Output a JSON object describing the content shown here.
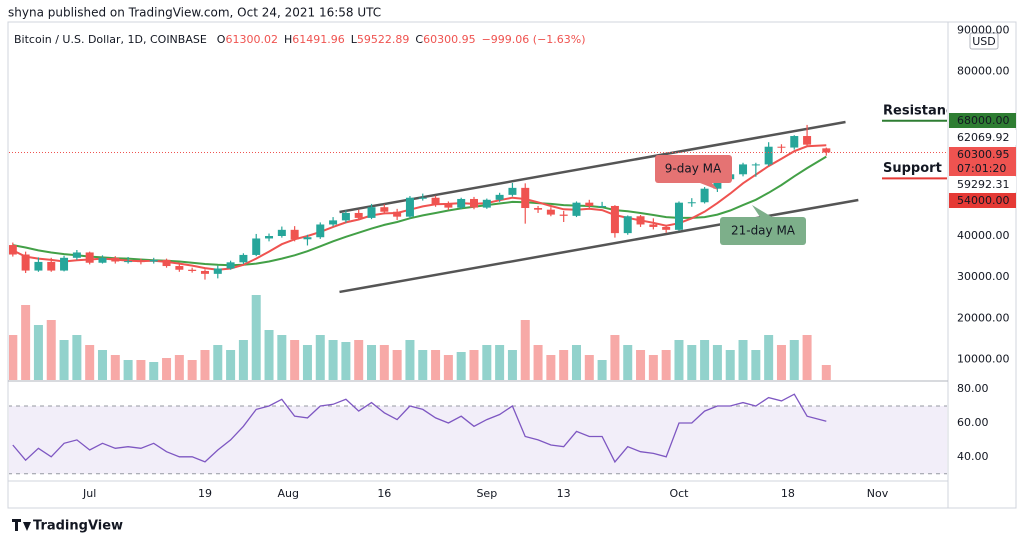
{
  "header": "shyna published on TradingView.com, Oct 24, 2021 16:58 UTC",
  "footer": "TradingView",
  "chart_data": {
    "type": "candlestick",
    "symbol": "Bitcoin / U.S. Dollar, 1D, COINBASE",
    "ohlc_keys": [
      "O",
      "H",
      "L",
      "C"
    ],
    "change_label": "−999.06 (−1.63%)",
    "currency": "USD",
    "up_color": "#26a69a",
    "down_color": "#ef5350",
    "x": [
      "2021-06-19",
      "2021-06-21",
      "2021-06-23",
      "2021-06-25",
      "2021-06-27",
      "2021-06-29",
      "2021-07-01",
      "2021-07-03",
      "2021-07-05",
      "2021-07-07",
      "2021-07-09",
      "2021-07-11",
      "2021-07-13",
      "2021-07-15",
      "2021-07-17",
      "2021-07-19",
      "2021-07-21",
      "2021-07-23",
      "2021-07-25",
      "2021-07-27",
      "2021-07-29",
      "2021-07-31",
      "2021-08-02",
      "2021-08-04",
      "2021-08-06",
      "2021-08-08",
      "2021-08-10",
      "2021-08-12",
      "2021-08-14",
      "2021-08-16",
      "2021-08-18",
      "2021-08-20",
      "2021-08-22",
      "2021-08-24",
      "2021-08-26",
      "2021-08-28",
      "2021-08-30",
      "2021-09-01",
      "2021-09-03",
      "2021-09-05",
      "2021-09-07",
      "2021-09-09",
      "2021-09-11",
      "2021-09-13",
      "2021-09-15",
      "2021-09-17",
      "2021-09-19",
      "2021-09-21",
      "2021-09-23",
      "2021-09-25",
      "2021-09-27",
      "2021-09-29",
      "2021-10-01",
      "2021-10-03",
      "2021-10-05",
      "2021-10-07",
      "2021-10-09",
      "2021-10-11",
      "2021-10-13",
      "2021-10-15",
      "2021-10-17",
      "2021-10-19",
      "2021-10-21",
      "2021-10-24"
    ],
    "ohlc": [
      [
        37800,
        38400,
        35000,
        35500
      ],
      [
        35500,
        36200,
        31000,
        31600
      ],
      [
        31600,
        34800,
        31300,
        33700
      ],
      [
        33700,
        34700,
        31300,
        31600
      ],
      [
        31600,
        35200,
        31400,
        34700
      ],
      [
        34700,
        36600,
        34200,
        36000
      ],
      [
        36000,
        36200,
        33100,
        33500
      ],
      [
        33500,
        35300,
        33300,
        34700
      ],
      [
        34700,
        35100,
        33300,
        33800
      ],
      [
        33800,
        34900,
        33300,
        33900
      ],
      [
        33900,
        34500,
        33100,
        33800
      ],
      [
        33800,
        34700,
        33300,
        34200
      ],
      [
        34200,
        34500,
        32300,
        32700
      ],
      [
        32700,
        33200,
        31300,
        31800
      ],
      [
        31800,
        32300,
        31100,
        31500
      ],
      [
        31500,
        31900,
        29400,
        30800
      ],
      [
        30800,
        32800,
        29700,
        32100
      ],
      [
        32100,
        34000,
        31800,
        33600
      ],
      [
        33600,
        35800,
        33200,
        35400
      ],
      [
        35400,
        40500,
        35100,
        39400
      ],
      [
        39400,
        40600,
        38700,
        40000
      ],
      [
        40000,
        42300,
        39600,
        41500
      ],
      [
        41500,
        42400,
        38700,
        39200
      ],
      [
        39200,
        40300,
        37700,
        39700
      ],
      [
        39700,
        43300,
        39300,
        42800
      ],
      [
        42800,
        44600,
        42300,
        43800
      ],
      [
        43800,
        46200,
        43200,
        45600
      ],
      [
        45600,
        46400,
        43800,
        44400
      ],
      [
        44400,
        47800,
        44100,
        47000
      ],
      [
        47000,
        47700,
        45300,
        45900
      ],
      [
        45900,
        46600,
        43900,
        44700
      ],
      [
        44700,
        49700,
        44300,
        49300
      ],
      [
        49300,
        50300,
        48600,
        49300
      ],
      [
        49300,
        49800,
        47100,
        47700
      ],
      [
        47700,
        48400,
        46300,
        46900
      ],
      [
        46900,
        49300,
        46500,
        49000
      ],
      [
        49000,
        49500,
        46500,
        46900
      ],
      [
        46900,
        49100,
        46600,
        48800
      ],
      [
        48800,
        50500,
        48300,
        50000
      ],
      [
        50000,
        52900,
        49600,
        51700
      ],
      [
        51700,
        52800,
        43000,
        46800
      ],
      [
        46800,
        47300,
        45600,
        46400
      ],
      [
        46400,
        47000,
        44800,
        45200
      ],
      [
        45200,
        46100,
        43400,
        44900
      ],
      [
        44900,
        48400,
        44600,
        48100
      ],
      [
        48100,
        48800,
        46800,
        47300
      ],
      [
        47300,
        48300,
        46900,
        47300
      ],
      [
        47300,
        47500,
        39600,
        40700
      ],
      [
        40700,
        45000,
        40300,
        44800
      ],
      [
        44800,
        45100,
        42200,
        42800
      ],
      [
        42800,
        44300,
        41600,
        42200
      ],
      [
        42200,
        42700,
        40800,
        41500
      ],
      [
        41500,
        48400,
        41300,
        48100
      ],
      [
        48100,
        49200,
        47100,
        48200
      ],
      [
        48200,
        51900,
        47900,
        51500
      ],
      [
        51500,
        55300,
        50700,
        53800
      ],
      [
        53800,
        55400,
        53400,
        55000
      ],
      [
        55000,
        57800,
        54500,
        57400
      ],
      [
        57400,
        57800,
        54400,
        57400
      ],
      [
        57400,
        62800,
        57000,
        61700
      ],
      [
        61700,
        62300,
        60200,
        61500
      ],
      [
        61500,
        64500,
        61000,
        64300
      ],
      [
        64300,
        67000,
        62000,
        62200
      ],
      [
        61300.02,
        61491.96,
        59522.89,
        60300.95
      ]
    ],
    "volume": [
      45,
      75,
      55,
      60,
      40,
      45,
      35,
      30,
      25,
      20,
      20,
      18,
      22,
      25,
      20,
      30,
      35,
      30,
      40,
      85,
      50,
      45,
      40,
      35,
      45,
      40,
      38,
      40,
      35,
      35,
      30,
      40,
      30,
      30,
      25,
      28,
      30,
      35,
      35,
      30,
      60,
      35,
      25,
      30,
      35,
      25,
      20,
      45,
      35,
      30,
      25,
      30,
      40,
      35,
      40,
      35,
      30,
      40,
      30,
      45,
      35,
      40,
      45,
      15
    ],
    "ma9": [
      36500,
      35000,
      34500,
      34200,
      33800,
      34100,
      34300,
      34500,
      34300,
      34000,
      33900,
      34000,
      33700,
      33300,
      32800,
      32200,
      31800,
      32100,
      33000,
      34500,
      36200,
      38000,
      39200,
      40000,
      41000,
      42200,
      43300,
      44000,
      45000,
      45500,
      45600,
      46400,
      47200,
      47700,
      47800,
      48000,
      47800,
      48000,
      48700,
      49300,
      49000,
      48200,
      47300,
      46500,
      46400,
      46600,
      46300,
      45100,
      44400,
      43800,
      43200,
      42500,
      43100,
      44300,
      45900,
      48000,
      50300,
      52800,
      54900,
      57000,
      58800,
      60600,
      61800,
      62069.92
    ],
    "ma21": [
      37800,
      37200,
      36500,
      36000,
      35600,
      35300,
      35000,
      34800,
      34600,
      34500,
      34300,
      34100,
      34000,
      33800,
      33500,
      33200,
      33000,
      32900,
      33000,
      33300,
      33800,
      34500,
      35300,
      36300,
      37500,
      38700,
      39800,
      40800,
      41800,
      42700,
      43400,
      44300,
      45000,
      45600,
      46200,
      46700,
      47100,
      47500,
      47900,
      48300,
      48200,
      48000,
      47800,
      47500,
      47400,
      47300,
      47000,
      46300,
      46000,
      45600,
      45100,
      44600,
      44400,
      44400,
      44600,
      45200,
      46200,
      47500,
      48800,
      50500,
      52400,
      54500,
      56500,
      59292.31
    ],
    "ma_labels": [
      "9-day MA",
      "21-day MA"
    ],
    "ma9_color": "#ef5350",
    "ma21_color": "#43a047",
    "xlim": [
      "2021-06-17",
      "2021-11-12"
    ],
    "xticks": [
      {
        "value": "2021-07-01",
        "label": "Jul"
      },
      {
        "value": "2021-07-19",
        "label": "19"
      },
      {
        "value": "2021-08-01",
        "label": "Aug"
      },
      {
        "value": "2021-08-16",
        "label": "16"
      },
      {
        "value": "2021-09-01",
        "label": "Sep"
      },
      {
        "value": "2021-09-13",
        "label": "13"
      },
      {
        "value": "2021-10-01",
        "label": "Oct"
      },
      {
        "value": "2021-10-18",
        "label": "18"
      },
      {
        "value": "2021-11-01",
        "label": "Nov"
      }
    ],
    "ylim": [
      5000,
      92500
    ],
    "yticks": [
      {
        "value": 90000,
        "label": "90000.00"
      },
      {
        "value": 80000,
        "label": "80000.00"
      },
      {
        "value": 40000,
        "label": "40000.00"
      },
      {
        "value": 30000,
        "label": "30000.00"
      },
      {
        "value": 20000,
        "label": "20000.00"
      },
      {
        "value": 10000,
        "label": "10000.00"
      }
    ],
    "price_lines": [
      {
        "name": "Resistance",
        "value": 68000,
        "label": "68000.00",
        "color": "#2e7d32",
        "text_color": "#d32f2f"
      },
      {
        "name": "Support",
        "value": 54000,
        "label": "54000.00",
        "color": "#e53935",
        "text_color": "#2e7d32"
      }
    ],
    "countdown": "07:01:20",
    "trendlines": [
      {
        "x": [
          "2021-08-09",
          "2021-10-27"
        ],
        "y": [
          45840,
          67700
        ]
      },
      {
        "x": [
          "2021-08-09",
          "2021-10-29"
        ],
        "y": [
          26400,
          48750
        ]
      }
    ],
    "rsi": {
      "color": "#7e57c2",
      "values": [
        47,
        38,
        45,
        40,
        48,
        50,
        44,
        48,
        45,
        46,
        45,
        48,
        43,
        40,
        40,
        37,
        44,
        50,
        58,
        68,
        70,
        74,
        64,
        63,
        70,
        71,
        74,
        67,
        72,
        66,
        62,
        70,
        68,
        63,
        60,
        64,
        58,
        62,
        65,
        70,
        52,
        50,
        47,
        46,
        55,
        52,
        52,
        37,
        46,
        43,
        42,
        40,
        60,
        60,
        67,
        70,
        70,
        72,
        70,
        75,
        73,
        77,
        64,
        61
      ],
      "ylim": [
        26.3,
        83.6
      ],
      "yticks": [
        {
          "value": 80,
          "label": "80.00"
        },
        {
          "value": 60,
          "label": "60.00"
        },
        {
          "value": 40,
          "label": "40.00"
        }
      ],
      "band": [
        30,
        70
      ]
    }
  }
}
